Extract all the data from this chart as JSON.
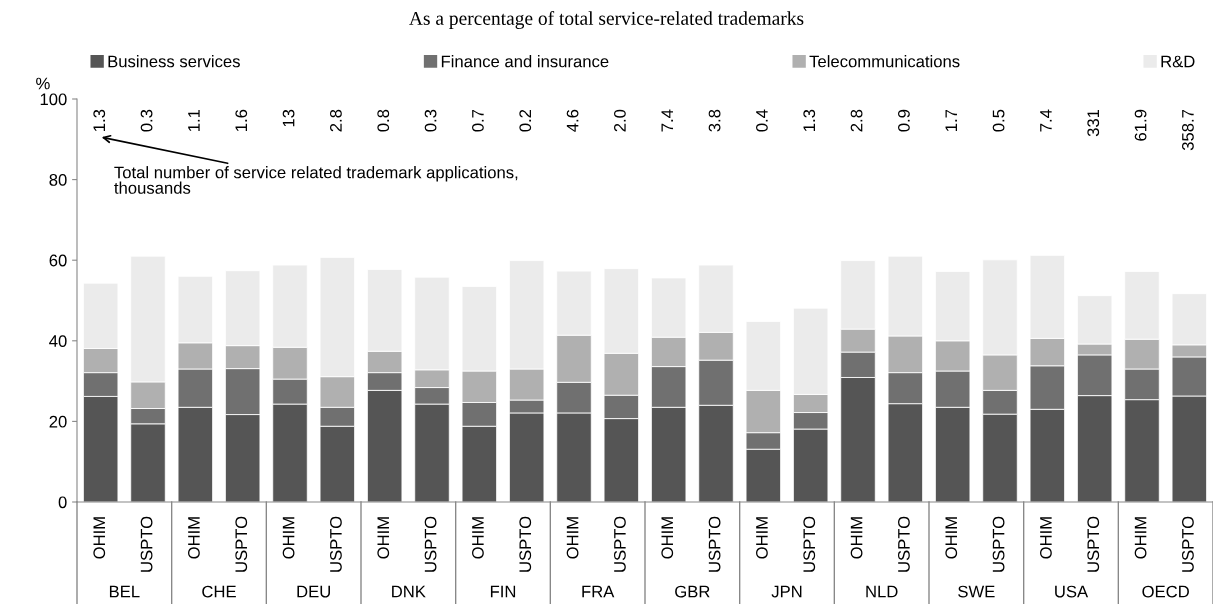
{
  "chart_data": {
    "type": "bar",
    "stacked": true,
    "title": "As a percentage of total service-related trademarks",
    "ylabel": "%",
    "categories": [
      "OHIM",
      "USPTO",
      "OHIM",
      "USPTO",
      "OHIM",
      "USPTO",
      "OHIM",
      "USPTO",
      "OHIM",
      "USPTO",
      "OHIM",
      "USPTO",
      "OHIM",
      "USPTO",
      "OHIM",
      "USPTO",
      "OHIM",
      "USPTO",
      "OHIM",
      "USPTO",
      "OHIM",
      "USPTO",
      "OHIM",
      "USPTO"
    ],
    "series": [
      {
        "name": "Business services",
        "color": "#555555",
        "values": [
          26.2,
          19.4,
          23.5,
          21.7,
          24.3,
          18.8,
          27.7,
          24.3,
          18.8,
          22.1,
          22.1,
          20.7,
          23.5,
          24.0,
          13.1,
          18.1,
          30.9,
          24.4,
          23.5,
          21.8,
          23.0,
          26.4,
          25.4,
          26.3
        ]
      },
      {
        "name": "Finance and insurance",
        "color": "#707070",
        "values": [
          5.9,
          3.8,
          9.5,
          11.4,
          6.2,
          4.7,
          4.4,
          4.1,
          5.9,
          3.2,
          7.6,
          5.8,
          10.1,
          11.2,
          4.1,
          4.1,
          6.3,
          7.7,
          9.0,
          5.9,
          10.8,
          10.1,
          7.6,
          9.7
        ]
      },
      {
        "name": "Telecommunications",
        "color": "#b0b0b0",
        "values": [
          6.0,
          6.6,
          6.5,
          5.7,
          7.9,
          7.6,
          5.3,
          4.4,
          7.8,
          7.7,
          11.7,
          10.4,
          7.3,
          6.9,
          10.5,
          4.5,
          5.7,
          9.1,
          7.5,
          8.8,
          6.8,
          2.7,
          7.4,
          3.0
        ]
      },
      {
        "name": "R&D",
        "color": "#ebebeb",
        "values": [
          16.2,
          31.2,
          16.5,
          18.6,
          20.4,
          29.6,
          20.3,
          23.0,
          21.0,
          26.9,
          15.9,
          21.0,
          14.7,
          16.7,
          17.1,
          21.4,
          17.0,
          19.8,
          17.2,
          23.6,
          20.6,
          12.0,
          16.8,
          12.7
        ]
      }
    ],
    "annotations": [
      "Total number of service related trademark applications,\nthousands",
      "1.3",
      "0.3",
      "1.1",
      "1.6",
      "13",
      "2.8",
      "0.8",
      "0.3",
      "0.7",
      "0.2",
      "4.6",
      "2.0",
      "7.4",
      "3.8",
      "0.4",
      "1.3",
      "2.8",
      "0.9",
      "1.7",
      "0.5",
      "7.4",
      "331",
      "61.9",
      "358.7",
      "BEL",
      "CHE",
      "DEU",
      "DNK",
      "FIN",
      "FRA",
      "GBR",
      "JPN",
      "NLD",
      "SWE",
      "USA",
      "OECD"
    ],
    "ylim": [
      0,
      100
    ],
    "yticks": [
      0,
      20,
      40,
      60,
      80,
      100
    ],
    "grid": false,
    "legend": "top"
  }
}
